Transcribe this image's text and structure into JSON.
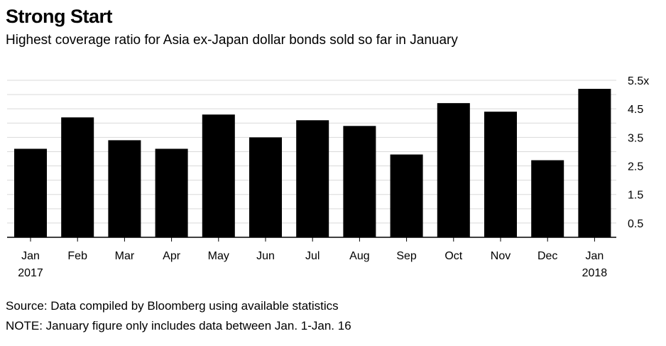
{
  "header": {
    "title": "Strong Start",
    "subtitle": "Highest coverage ratio for Asia ex-Japan dollar bonds sold so far in January"
  },
  "footer": {
    "source": "Source: Data compiled by Bloomberg using available statistics",
    "note": "NOTE: January figure only includes data between Jan. 1-Jan. 16"
  },
  "colors": {
    "bar": "#000000",
    "grid": "#d9d9d9",
    "axis": "#000000"
  },
  "chart_data": {
    "type": "bar",
    "title": "Strong Start",
    "subtitle": "Highest coverage ratio for Asia ex-Japan dollar bonds sold so far in January",
    "categories": [
      "Jan",
      "Feb",
      "Mar",
      "Apr",
      "May",
      "Jun",
      "Jul",
      "Aug",
      "Sep",
      "Oct",
      "Nov",
      "Dec",
      "Jan"
    ],
    "category_sublabels": [
      "2017",
      "",
      "",
      "",
      "",
      "",
      "",
      "",
      "",
      "",
      "",
      "",
      "2018"
    ],
    "values": [
      3.1,
      4.2,
      3.4,
      3.1,
      4.3,
      3.5,
      4.1,
      3.9,
      2.9,
      4.7,
      4.4,
      2.7,
      5.2
    ],
    "y_ticks": [
      0.5,
      1.5,
      2.5,
      3.5,
      4.5,
      5.5
    ],
    "y_tick_labels": [
      "0.5",
      "1.5",
      "2.5",
      "3.5",
      "4.5",
      "5.5x"
    ],
    "ylim": [
      0,
      5.5
    ],
    "xlabel": "",
    "ylabel": "",
    "grid": true,
    "y_axis_side": "right"
  }
}
